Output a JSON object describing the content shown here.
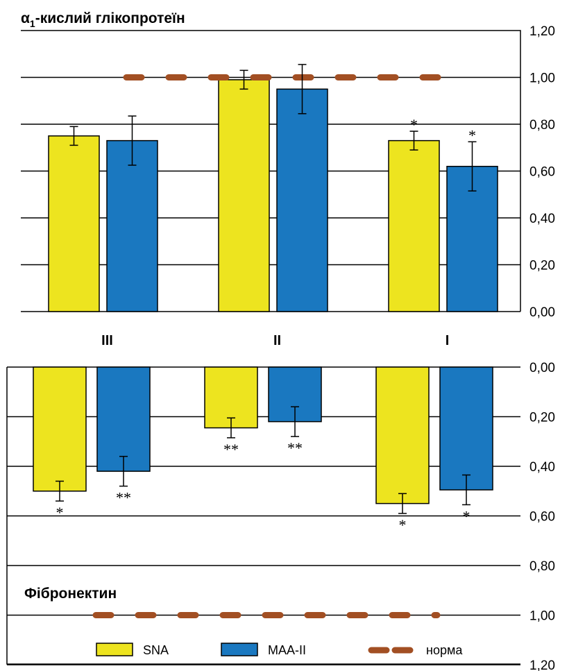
{
  "chart_data": [
    {
      "type": "bar",
      "title_prefix": "α",
      "title_subscript": "1",
      "title_rest": "-кислий глікопротеїн",
      "categories": [
        "III",
        "II",
        "I"
      ],
      "series": [
        {
          "name": "SNA",
          "color": "#ede41f",
          "values": [
            0.75,
            0.99,
            0.73
          ],
          "errors": [
            0.04,
            0.04,
            0.04
          ],
          "significance": [
            "",
            "",
            "*"
          ]
        },
        {
          "name": "MAA-II",
          "color": "#1a78c0",
          "values": [
            0.73,
            0.95,
            0.62
          ],
          "errors": [
            0.105,
            0.105,
            0.105
          ],
          "significance": [
            "",
            "",
            "*"
          ]
        }
      ],
      "reference": {
        "name": "норма",
        "value": 1.0,
        "color": "#a24f23"
      },
      "yticks": [
        "1,20",
        "1,00",
        "0,80",
        "0,60",
        "0,40",
        "0,20",
        "0,00"
      ],
      "ylim": [
        0,
        1.2
      ],
      "y_axis_side": "right",
      "grid": true
    },
    {
      "type": "bar",
      "title": "Фібронектин",
      "categories": [
        "III",
        "II",
        "I"
      ],
      "series": [
        {
          "name": "SNA",
          "color": "#ede41f",
          "values": [
            0.5,
            0.245,
            0.55
          ],
          "errors": [
            0.04,
            0.04,
            0.04
          ],
          "significance": [
            "*",
            "**",
            "*"
          ]
        },
        {
          "name": "MAA-II",
          "color": "#1a78c0",
          "values": [
            0.42,
            0.22,
            0.495
          ],
          "errors": [
            0.06,
            0.06,
            0.06
          ],
          "significance": [
            "**",
            "**",
            "*"
          ]
        }
      ],
      "reference": {
        "name": "норма",
        "value": 1.0,
        "color": "#a24f23"
      },
      "yticks": [
        "0,00",
        "0,20",
        "0,40",
        "0,60",
        "0,80",
        "1,00",
        "1,20"
      ],
      "ylim": [
        0,
        1.2
      ],
      "y_axis_inverted": true,
      "y_axis_side": "right",
      "grid": true
    }
  ],
  "legend": [
    {
      "label": "SNA",
      "color": "#ede41f",
      "kind": "box"
    },
    {
      "label": "MAA-II",
      "color": "#1a78c0",
      "kind": "box"
    },
    {
      "label": "норма",
      "color": "#a24f23",
      "kind": "dash"
    }
  ]
}
